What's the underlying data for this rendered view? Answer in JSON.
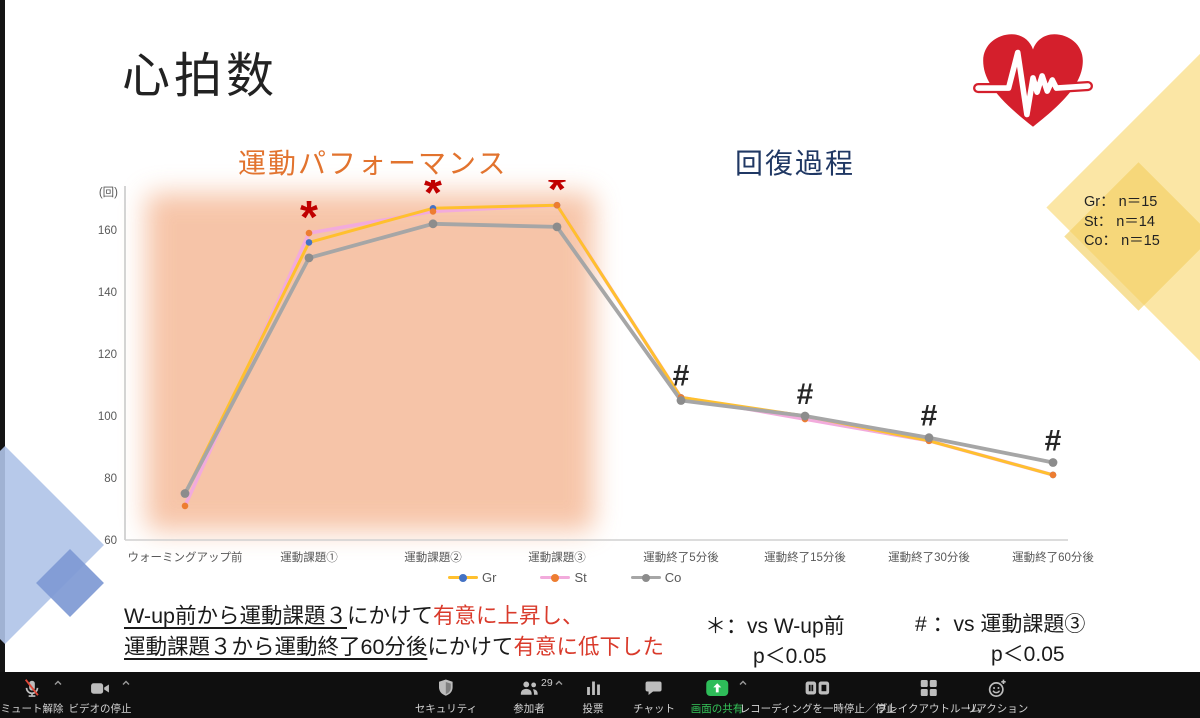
{
  "slide": {
    "title": "心拍数",
    "section_labels": {
      "performance": "運動パフォーマンス",
      "recovery": "回復過程"
    },
    "sample_sizes": [
      "Gr： n＝15",
      "St： n＝14",
      "Co： n＝15"
    ],
    "summary": {
      "l1_u": "W-up前から運動課題３",
      "l1_m": "にかけて",
      "l1_r": "有意に上昇し、",
      "l2_u": "運動課題３から運動終了60分後",
      "l2_m": "にかけて",
      "l2_r": "有意に低下した"
    },
    "sig_notes": {
      "sig1_l1": "＊：vs W-up前",
      "sig1_l2": "p＜0.05",
      "sig2_l1": "# ：vs 運動課題③",
      "sig2_l2": "p＜0.05"
    }
  },
  "chart_data": {
    "type": "line",
    "title": "心拍数",
    "ylabel": "(回)",
    "ylim": [
      60,
      170
    ],
    "yticks": [
      60,
      80,
      100,
      120,
      140,
      160
    ],
    "grid": false,
    "legend_position": "bottom",
    "categories": [
      "ウォーミングアップ前",
      "運動課題①",
      "運動課題②",
      "運動課題③",
      "運動終了5分後",
      "運動終了15分後",
      "運動終了30分後",
      "運動終了60分後"
    ],
    "series": [
      {
        "name": "Gr",
        "color": "#FFC02E",
        "marker_color": "#4472C4",
        "values": [
          75,
          156,
          167,
          168,
          106,
          100,
          92,
          81
        ]
      },
      {
        "name": "St",
        "color": "#F2ABDC",
        "marker_color": "#ED7D31",
        "values": [
          71,
          159,
          166,
          168,
          106,
          99,
          92,
          81
        ]
      },
      {
        "name": "Co",
        "color": "#A6A6A6",
        "marker_color": "#8C8C8C",
        "values": [
          75,
          151,
          162,
          161,
          105,
          100,
          93,
          85
        ]
      }
    ],
    "annotations": [
      {
        "symbol": "*",
        "color": "#C00000",
        "meaning": "vs W-up前 p＜0.05",
        "category_indexes": [
          1,
          2,
          3
        ]
      },
      {
        "symbol": "#",
        "color": "#262626",
        "meaning": "vs 運動課題③ p＜0.05",
        "category_indexes": [
          4,
          5,
          6,
          7
        ]
      }
    ]
  },
  "toolbar": {
    "items": [
      {
        "id": "unmute",
        "label": "ミュート解除",
        "icon": "mic-muted-icon",
        "chevron": true
      },
      {
        "id": "stop-video",
        "label": "ビデオの停止",
        "icon": "video-icon",
        "chevron": true
      },
      {
        "id": "security",
        "label": "セキュリティ",
        "icon": "shield-icon"
      },
      {
        "id": "participants",
        "label": "参加者",
        "icon": "participants-icon",
        "badge": "29",
        "chevron": true
      },
      {
        "id": "polls",
        "label": "投票",
        "icon": "poll-icon"
      },
      {
        "id": "chat",
        "label": "チャット",
        "icon": "chat-icon"
      },
      {
        "id": "share-screen",
        "label": "画面の共有",
        "icon": "share-screen-icon",
        "chevron": true,
        "accent": "#2EBD59"
      },
      {
        "id": "recording",
        "label": "レコーディングを一時停止／停止",
        "icon": "recording-icon"
      },
      {
        "id": "breakout",
        "label": "ブレイクアウトルーム",
        "icon": "breakout-icon"
      },
      {
        "id": "reactions",
        "label": "リアクション",
        "icon": "reaction-icon"
      }
    ]
  }
}
